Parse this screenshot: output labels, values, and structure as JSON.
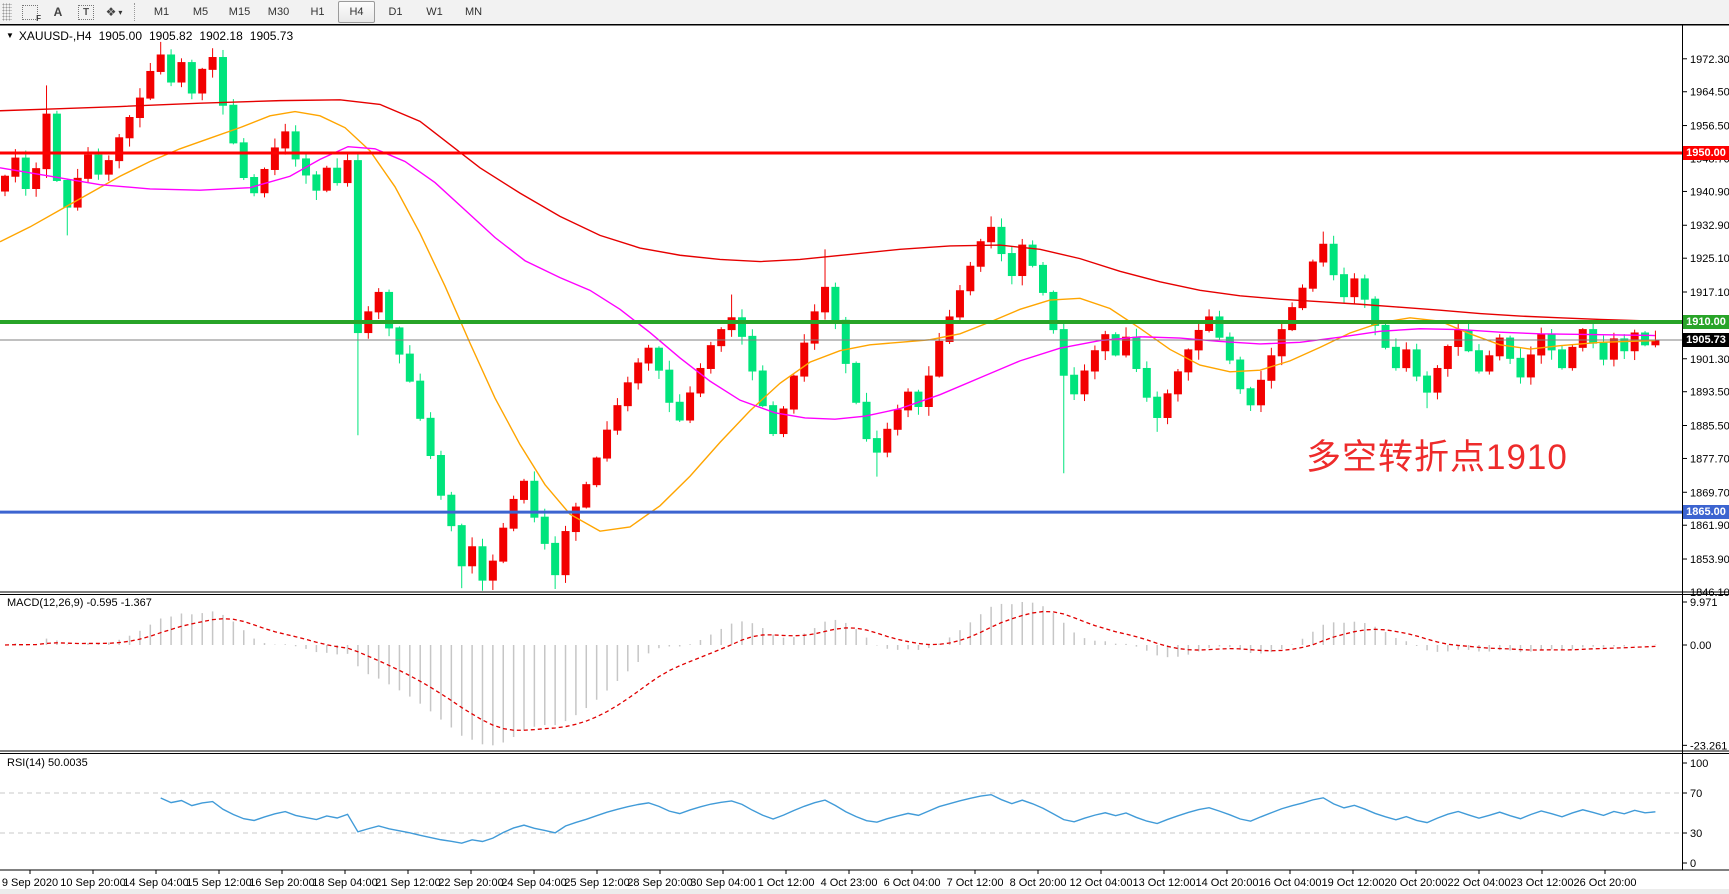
{
  "toolbar": {
    "icons": [
      {
        "name": "chart-grid-f-icon",
        "glyph": "F"
      },
      {
        "name": "text-a-icon",
        "glyph": "A"
      },
      {
        "name": "text-box-icon",
        "glyph": "T"
      },
      {
        "name": "arrows-tool-icon",
        "glyph": "❖"
      },
      {
        "name": "dropdown-caret-icon",
        "glyph": "▾"
      }
    ],
    "timeframes": [
      "M1",
      "M5",
      "M15",
      "M30",
      "H1",
      "H4",
      "D1",
      "W1",
      "MN"
    ],
    "active_timeframe": "H4"
  },
  "title": {
    "dropdown_glyph": "▼",
    "symbol_timeframe": "XAUUSD-,H4",
    "open": "1905.00",
    "high": "1905.82",
    "low": "1902.18",
    "close": "1905.73"
  },
  "annotation": {
    "text": "多空转折点1910",
    "color": "#ee2b2b"
  },
  "panels": {
    "macd": {
      "label": "MACD(12,26,9) -0.595 -1.367",
      "axis_ticks": [
        "9.971",
        "0.00",
        "-23.261"
      ],
      "axis_values": [
        9.971,
        0,
        -23.261
      ]
    },
    "rsi": {
      "label": "RSI(14) 50.0035",
      "axis_ticks": [
        "100",
        "70",
        "30",
        "0"
      ],
      "axis_values": [
        100,
        70,
        30,
        0
      ],
      "level_lines": [
        70,
        30
      ]
    }
  },
  "price_axis": {
    "tick_labels": [
      "1972.30",
      "1964.50",
      "1956.50",
      "1948.70",
      "1940.90",
      "1932.90",
      "1925.10",
      "1917.10",
      "1909.30",
      "1901.30",
      "1893.50",
      "1885.50",
      "1877.70",
      "1869.70",
      "1861.90",
      "1853.90",
      "1846.10"
    ],
    "tick_values": [
      1972.3,
      1964.5,
      1956.5,
      1948.7,
      1940.9,
      1932.9,
      1925.1,
      1917.1,
      1909.3,
      1901.3,
      1893.5,
      1885.5,
      1877.7,
      1869.7,
      1861.9,
      1853.9,
      1846.1
    ]
  },
  "time_axis": {
    "labels": [
      "9 Sep 2020",
      "10 Sep 20:00",
      "14 Sep 04:00",
      "15 Sep 12:00",
      "16 Sep 20:00",
      "18 Sep 04:00",
      "21 Sep 12:00",
      "22 Sep 20:00",
      "24 Sep 04:00",
      "25 Sep 12:00",
      "28 Sep 20:00",
      "30 Sep 04:00",
      "1 Oct 12:00",
      "4 Oct 23:00",
      "6 Oct 04:00",
      "7 Oct 12:00",
      "8 Oct 20:00",
      "12 Oct 04:00",
      "13 Oct 12:00",
      "14 Oct 20:00",
      "16 Oct 04:00",
      "19 Oct 12:00",
      "20 Oct 20:00",
      "22 Oct 04:00",
      "23 Oct 12:00",
      "26 Oct 20:00"
    ]
  },
  "hlines": [
    {
      "name": "resistance-line-1950",
      "price": 1950.0,
      "label": "1950.00",
      "color": "#fe0000",
      "width": 3
    },
    {
      "name": "pivot-line-1910",
      "price": 1910.0,
      "label": "1910.00",
      "color": "#28a428",
      "width": 4
    },
    {
      "name": "support-line-1865",
      "price": 1865.0,
      "label": "1865.00",
      "color": "#3c64d0",
      "width": 3
    }
  ],
  "bid_line": {
    "price": 1905.73,
    "label": "1905.73",
    "color": "#808080",
    "badge_bg": "#000000"
  },
  "colors": {
    "bull_candle": "#f20000",
    "bear_candle": "#00e47c",
    "ma_fast": "#ffa500",
    "ma_mid": "#ff00ff",
    "ma_slow": "#e60000",
    "macd_hist": "#c6c6c6",
    "macd_signal": "#e00000",
    "rsi_line": "#419bd8",
    "rsi_levels": "#c8c8c8",
    "axis_text": "#000000",
    "border": "#000000"
  },
  "chart_data": {
    "type": "candlestick",
    "title": "XAUUSD- H4 with MACD(12,26,9) and RSI(14)",
    "symbol": "XAUUSD-",
    "timeframe": "H4",
    "current_bar": {
      "open": 1905.0,
      "high": 1905.82,
      "low": 1902.18,
      "close": 1905.73
    },
    "y_axis_range": [
      1846.1,
      1979.0
    ],
    "first_open": 1941.0,
    "closes": [
      1944.5,
      1948.8,
      1941.6,
      1946.3,
      1959.2,
      1943.5,
      1937.2,
      1944.0,
      1949.5,
      1945.0,
      1948.2,
      1953.6,
      1958.4,
      1963.0,
      1969.3,
      1973.2,
      1966.8,
      1971.4,
      1964.2,
      1969.8,
      1972.6,
      1961.3,
      1952.4,
      1944.2,
      1940.6,
      1946.1,
      1951.2,
      1955.0,
      1948.6,
      1944.8,
      1941.2,
      1946.4,
      1943.0,
      1948.2,
      1907.5,
      1912.4,
      1917.0,
      1908.6,
      1902.4,
      1896.0,
      1887.2,
      1878.4,
      1869.0,
      1861.8,
      1852.3,
      1856.8,
      1848.9,
      1853.4,
      1861.2,
      1868.0,
      1872.3,
      1863.8,
      1857.6,
      1850.2,
      1860.4,
      1866.2,
      1871.5,
      1877.8,
      1884.4,
      1890.2,
      1895.6,
      1900.3,
      1903.8,
      1898.6,
      1891.0,
      1886.8,
      1893.2,
      1899.0,
      1904.4,
      1908.2,
      1911.0,
      1906.6,
      1898.4,
      1890.2,
      1883.6,
      1889.4,
      1897.2,
      1905.0,
      1912.4,
      1918.2,
      1910.4,
      1900.2,
      1891.0,
      1882.4,
      1879.2,
      1884.6,
      1889.2,
      1893.4,
      1890.0,
      1897.2,
      1905.4,
      1911.2,
      1917.4,
      1923.2,
      1929.0,
      1932.4,
      1926.2,
      1921.0,
      1928.2,
      1923.4,
      1917.0,
      1908.2,
      1897.4,
      1893.0,
      1898.4,
      1903.2,
      1907.0,
      1902.2,
      1906.4,
      1899.0,
      1892.2,
      1887.4,
      1893.0,
      1898.2,
      1903.4,
      1908.0,
      1911.2,
      1906.4,
      1901.0,
      1894.2,
      1890.4,
      1896.2,
      1902.0,
      1908.2,
      1913.4,
      1918.0,
      1924.2,
      1928.4,
      1921.2,
      1916.0,
      1920.2,
      1915.4,
      1909.2,
      1904.0,
      1899.2,
      1903.4,
      1897.2,
      1893.4,
      1899.0,
      1904.2,
      1908.0,
      1903.2,
      1898.4,
      1902.0,
      1906.2,
      1901.4,
      1897.0,
      1902.2,
      1907.0,
      1903.4,
      1899.2,
      1904.0,
      1908.2,
      1905.0,
      1901.2,
      1906.0,
      1903.2,
      1907.4,
      1904.6,
      1905.73
    ],
    "wick_overrides": [
      [
        4,
        1966.0,
        null
      ],
      [
        6,
        null,
        1930.5
      ],
      [
        15,
        1976.3,
        null
      ],
      [
        20,
        1974.8,
        null
      ],
      [
        34,
        null,
        1883.2
      ],
      [
        44,
        null,
        1847.0
      ],
      [
        46,
        null,
        1846.4
      ],
      [
        53,
        null,
        1846.8
      ],
      [
        70,
        1916.5,
        null
      ],
      [
        79,
        1927.2,
        null
      ],
      [
        84,
        null,
        1873.4
      ],
      [
        95,
        1935.0,
        null
      ],
      [
        102,
        null,
        1874.2
      ],
      [
        111,
        null,
        1884.0
      ],
      [
        127,
        1931.4,
        null
      ],
      [
        137,
        null,
        1889.6
      ]
    ],
    "ma_slow_points": [
      [
        0,
        1960
      ],
      [
        60,
        1960.5
      ],
      [
        120,
        1961
      ],
      [
        200,
        1961.8
      ],
      [
        280,
        1962.4
      ],
      [
        340,
        1962.6
      ],
      [
        380,
        1961.5
      ],
      [
        420,
        1957.5
      ],
      [
        450,
        1952
      ],
      [
        480,
        1946.5
      ],
      [
        520,
        1940.5
      ],
      [
        560,
        1935
      ],
      [
        600,
        1930.5
      ],
      [
        640,
        1927.5
      ],
      [
        680,
        1925.8
      ],
      [
        720,
        1924.8
      ],
      [
        760,
        1924.3
      ],
      [
        800,
        1924.8
      ],
      [
        850,
        1926
      ],
      [
        900,
        1927.2
      ],
      [
        950,
        1928
      ],
      [
        1000,
        1928.2
      ],
      [
        1040,
        1927.2
      ],
      [
        1080,
        1925
      ],
      [
        1120,
        1922
      ],
      [
        1160,
        1919.5
      ],
      [
        1200,
        1917.5
      ],
      [
        1240,
        1916.2
      ],
      [
        1280,
        1915.4
      ],
      [
        1320,
        1914.8
      ],
      [
        1360,
        1914.2
      ],
      [
        1400,
        1913.5
      ],
      [
        1440,
        1912.8
      ],
      [
        1480,
        1912
      ],
      [
        1520,
        1911.4
      ],
      [
        1560,
        1911
      ],
      [
        1600,
        1910.6
      ],
      [
        1655,
        1910.2
      ]
    ],
    "ma_mid_points": [
      [
        0,
        1946.5
      ],
      [
        50,
        1944.5
      ],
      [
        100,
        1942.5
      ],
      [
        150,
        1941.5
      ],
      [
        200,
        1941.2
      ],
      [
        250,
        1941.8
      ],
      [
        290,
        1944.5
      ],
      [
        320,
        1948.5
      ],
      [
        348,
        1951.5
      ],
      [
        375,
        1951
      ],
      [
        405,
        1948
      ],
      [
        435,
        1943
      ],
      [
        465,
        1936.5
      ],
      [
        495,
        1930
      ],
      [
        525,
        1924.5
      ],
      [
        560,
        1920.5
      ],
      [
        590,
        1917.5
      ],
      [
        620,
        1913
      ],
      [
        650,
        1907.5
      ],
      [
        680,
        1901.5
      ],
      [
        710,
        1896
      ],
      [
        740,
        1891.5
      ],
      [
        775,
        1888.5
      ],
      [
        805,
        1887.3
      ],
      [
        835,
        1887
      ],
      [
        865,
        1887.7
      ],
      [
        900,
        1889.5
      ],
      [
        940,
        1892.8
      ],
      [
        980,
        1896.8
      ],
      [
        1020,
        1900.8
      ],
      [
        1060,
        1903.8
      ],
      [
        1100,
        1905.6
      ],
      [
        1140,
        1906.5
      ],
      [
        1180,
        1906.2
      ],
      [
        1220,
        1905.4
      ],
      [
        1260,
        1904.8
      ],
      [
        1300,
        1905.2
      ],
      [
        1340,
        1906.4
      ],
      [
        1380,
        1907.8
      ],
      [
        1420,
        1908.4
      ],
      [
        1460,
        1908.2
      ],
      [
        1500,
        1907.6
      ],
      [
        1540,
        1907.2
      ],
      [
        1600,
        1907
      ],
      [
        1655,
        1906.8
      ]
    ],
    "ma_fast_points": [
      [
        0,
        1929
      ],
      [
        30,
        1932.5
      ],
      [
        60,
        1936.5
      ],
      [
        90,
        1940.5
      ],
      [
        120,
        1944.5
      ],
      [
        150,
        1948
      ],
      [
        180,
        1951
      ],
      [
        210,
        1953.5
      ],
      [
        240,
        1956
      ],
      [
        270,
        1958.8
      ],
      [
        295,
        1959.8
      ],
      [
        320,
        1958.8
      ],
      [
        345,
        1956
      ],
      [
        370,
        1950.5
      ],
      [
        395,
        1942
      ],
      [
        420,
        1931
      ],
      [
        445,
        1918.5
      ],
      [
        470,
        1905
      ],
      [
        495,
        1892
      ],
      [
        520,
        1881
      ],
      [
        545,
        1871.5
      ],
      [
        570,
        1864.5
      ],
      [
        600,
        1860.5
      ],
      [
        630,
        1861.5
      ],
      [
        660,
        1866.5
      ],
      [
        690,
        1873.5
      ],
      [
        720,
        1881.5
      ],
      [
        750,
        1889
      ],
      [
        780,
        1895.5
      ],
      [
        810,
        1900.5
      ],
      [
        840,
        1903.2
      ],
      [
        870,
        1904.6
      ],
      [
        900,
        1905.2
      ],
      [
        930,
        1905.8
      ],
      [
        960,
        1907.2
      ],
      [
        990,
        1910
      ],
      [
        1020,
        1913
      ],
      [
        1050,
        1915.2
      ],
      [
        1080,
        1915.6
      ],
      [
        1110,
        1913.2
      ],
      [
        1140,
        1908.5
      ],
      [
        1170,
        1903.5
      ],
      [
        1200,
        1899.8
      ],
      [
        1230,
        1898.2
      ],
      [
        1260,
        1898.6
      ],
      [
        1290,
        1900.8
      ],
      [
        1320,
        1904
      ],
      [
        1350,
        1907.4
      ],
      [
        1380,
        1909.8
      ],
      [
        1410,
        1911
      ],
      [
        1440,
        1910.2
      ],
      [
        1470,
        1907.2
      ],
      [
        1500,
        1904.6
      ],
      [
        1530,
        1903.6
      ],
      [
        1560,
        1904.4
      ],
      [
        1600,
        1905.2
      ],
      [
        1655,
        1905.6
      ]
    ],
    "macd": {
      "params": [
        12,
        26,
        9
      ],
      "current_main": -0.595,
      "current_signal": -1.367,
      "range": [
        -23.261,
        9.971
      ]
    },
    "rsi": {
      "period": 14,
      "current": 50.0035,
      "range": [
        0,
        100
      ],
      "level_lines": [
        70,
        30
      ]
    }
  }
}
